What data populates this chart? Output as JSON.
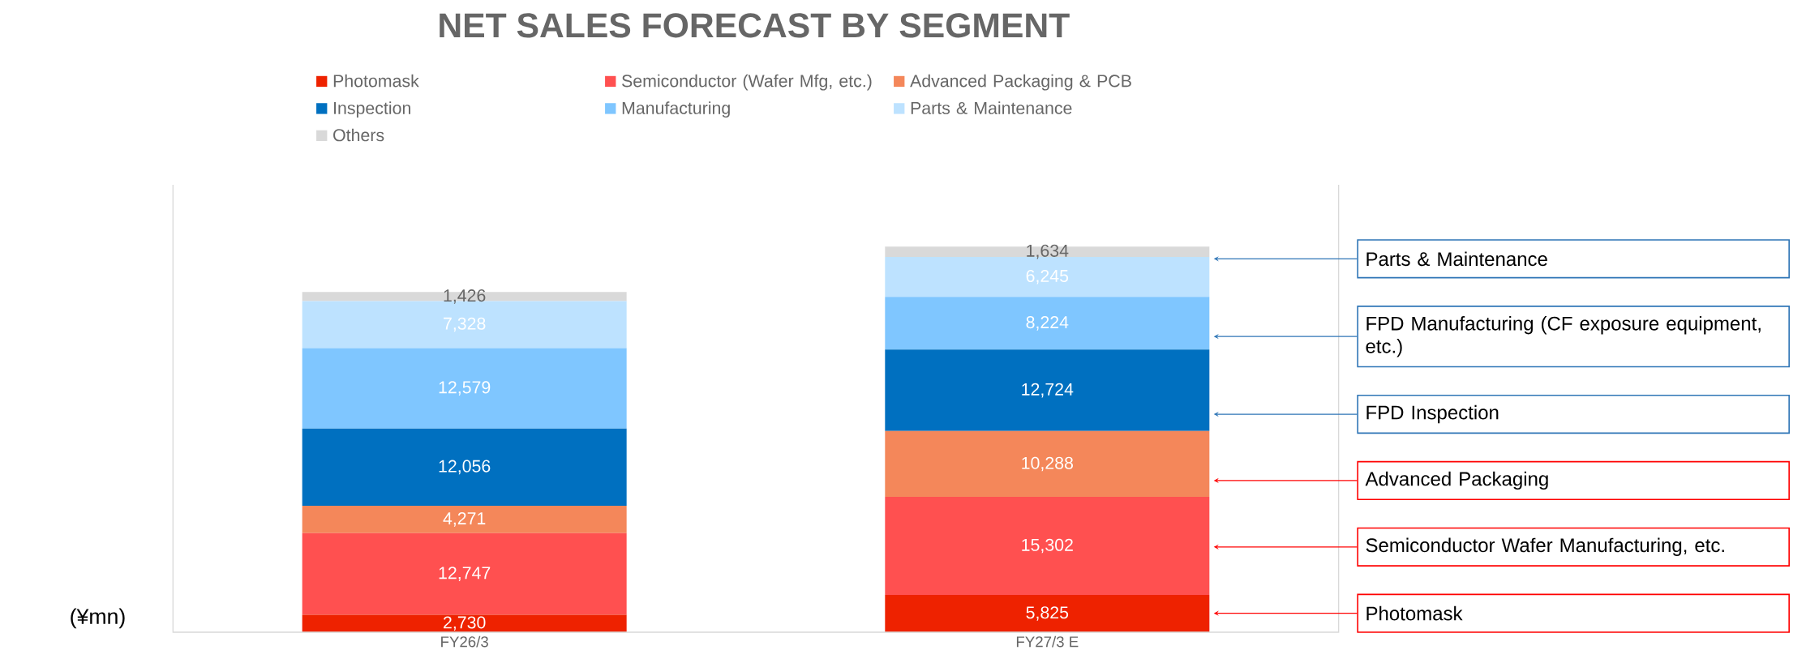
{
  "chart_data": {
    "type": "bar",
    "title": "NET SALES FORECAST BY SEGMENT",
    "ylabel": "(¥mn)",
    "categories": [
      "FY26/3",
      "FY27/3 E"
    ],
    "stacked": true,
    "legend": "top",
    "tick_labels": "x",
    "series": [
      {
        "name": "Photomask",
        "color": "#ee2200",
        "values": [
          2730,
          5825
        ],
        "value_labels": [
          "2,730",
          "5,825"
        ]
      },
      {
        "name": "Semiconductor (Wafer Mfg, etc.)",
        "color": "#ff5050",
        "values": [
          12747,
          15302
        ],
        "value_labels": [
          "12,747",
          "15,302"
        ]
      },
      {
        "name": "Advanced Packaging & PCB",
        "color": "#f4875a",
        "values": [
          4271,
          10288
        ],
        "value_labels": [
          "4,271",
          "10,288"
        ]
      },
      {
        "name": "Inspection",
        "color": "#0070c0",
        "values": [
          12056,
          12724
        ],
        "value_labels": [
          "12,056",
          "12,724"
        ]
      },
      {
        "name": "Manufacturing",
        "color": "#7fc6ff",
        "values": [
          12579,
          8224
        ],
        "value_labels": [
          "12,579",
          "8,224"
        ]
      },
      {
        "name": "Parts & Maintenance",
        "color": "#bde2ff",
        "values": [
          7328,
          6245
        ],
        "value_labels": [
          "7,328",
          "6,245"
        ]
      },
      {
        "name": "Others",
        "color": "#d9d9d9",
        "values": [
          1426,
          1634
        ],
        "value_labels": [
          "1,426",
          "1,634"
        ]
      }
    ],
    "annotations": [
      "Parts & Maintenance",
      "FPD Manufacturing (CF exposure equipment, etc.)",
      "FPD  Inspection",
      "Advanced Packaging",
      "Semiconductor Wafer Manufacturing, etc.",
      "Photomask"
    ]
  }
}
